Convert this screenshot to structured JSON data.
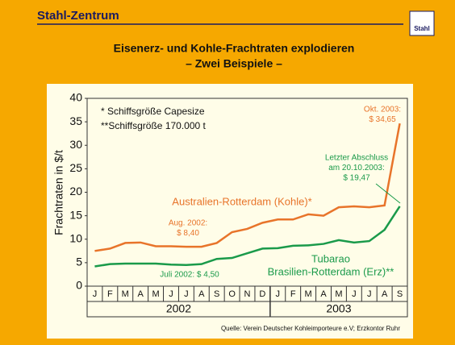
{
  "header": {
    "title": "Stahl-Zentrum",
    "logo": "Stahl"
  },
  "chart_data": {
    "type": "line",
    "title": [
      "Eisenerz- und Kohle-Frachtraten explodieren",
      "– Zwei Beispiele –"
    ],
    "y_label": "Frachtraten in $/t",
    "categories": [
      "J",
      "F",
      "M",
      "A",
      "M",
      "J",
      "J",
      "A",
      "S",
      "O",
      "N",
      "D",
      "J",
      "F",
      "M",
      "A",
      "M",
      "J",
      "J",
      "A",
      "S"
    ],
    "years": [
      {
        "name": "2002",
        "count": 12
      },
      {
        "name": "2003",
        "count": 9
      }
    ],
    "ylim": [
      0,
      40
    ],
    "yticks": [
      0,
      5,
      10,
      15,
      20,
      25,
      30,
      35,
      40
    ],
    "series": [
      {
        "name": "Australien-Rotterdam (Kohle)*",
        "color": "#e8742a",
        "values": [
          7.5,
          8,
          9.2,
          9.3,
          8.5,
          8.5,
          8.4,
          8.4,
          9.2,
          11.5,
          12.2,
          13.5,
          14.2,
          14.2,
          15.3,
          15,
          16.8,
          17,
          16.8,
          17.2,
          34.65
        ]
      },
      {
        "name": [
          "Tubarao",
          "Brasilien-Rotterdam (Erz)**"
        ],
        "color": "#1a9a4a",
        "values": [
          4.2,
          4.7,
          4.8,
          4.8,
          4.8,
          4.6,
          4.5,
          4.7,
          5.8,
          6,
          7,
          8,
          8.1,
          8.6,
          8.7,
          9,
          9.8,
          9.3,
          9.6,
          12,
          17
        ]
      }
    ],
    "notes": [
      "* Schiffsgröße Capesize",
      "**Schiffsgröße 170.000 t"
    ],
    "annotations": [
      {
        "lines": [
          "Okt. 2003:",
          "$ 34,65"
        ],
        "color": "#e8742a"
      },
      {
        "lines": [
          "Aug. 2002:",
          "$ 8,40"
        ],
        "color": "#e8742a"
      },
      {
        "lines": [
          "Letzter Abschluss",
          "am 20.10.2003:",
          "$ 19,47"
        ],
        "color": "#1a9a4a"
      },
      {
        "lines": [
          "Juli 2002: $ 4,50"
        ],
        "color": "#1a9a4a"
      }
    ],
    "source": "Quelle: Verein Deutscher Kohleimporteure e.V; Erzkontor Ruhr"
  }
}
